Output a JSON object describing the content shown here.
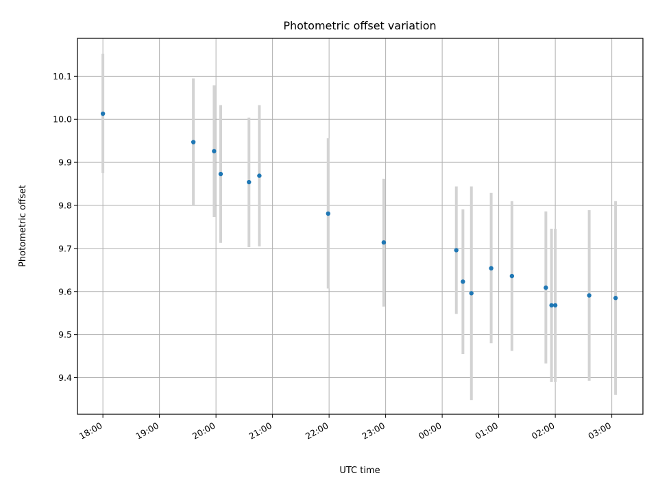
{
  "chart_data": {
    "type": "scatter",
    "title": "Photometric offset variation",
    "xlabel": "UTC time",
    "ylabel": "Photometric offset",
    "x_tick_labels": [
      "18:00",
      "19:00",
      "20:00",
      "21:00",
      "22:00",
      "23:00",
      "00:00",
      "01:00",
      "02:00",
      "03:00"
    ],
    "x_ticks_hours": [
      18,
      19,
      20,
      21,
      22,
      23,
      24,
      25,
      26,
      27
    ],
    "y_ticks": [
      9.4,
      9.5,
      9.6,
      9.7,
      9.8,
      9.9,
      10.0,
      10.1
    ],
    "xlim_hours": [
      17.55,
      27.55
    ],
    "ylim": [
      9.315,
      10.188
    ],
    "grid": true,
    "marker_color": "#1f77b4",
    "errorbar_color": "#d3d3d3",
    "points": [
      {
        "time": "18:00",
        "value": 10.013,
        "low": 9.875,
        "high": 10.152
      },
      {
        "time": "19:36",
        "value": 9.947,
        "low": 9.8,
        "high": 10.095
      },
      {
        "time": "19:58",
        "value": 9.926,
        "low": 9.773,
        "high": 10.079
      },
      {
        "time": "20:05",
        "value": 9.873,
        "low": 9.713,
        "high": 10.033
      },
      {
        "time": "20:35",
        "value": 9.854,
        "low": 9.703,
        "high": 10.004
      },
      {
        "time": "20:46",
        "value": 9.869,
        "low": 9.705,
        "high": 10.033
      },
      {
        "time": "21:59",
        "value": 9.781,
        "low": 9.607,
        "high": 9.956
      },
      {
        "time": "22:58",
        "value": 9.714,
        "low": 9.565,
        "high": 9.862
      },
      {
        "time": "00:15",
        "value": 9.696,
        "low": 9.548,
        "high": 9.844
      },
      {
        "time": "00:22",
        "value": 9.623,
        "low": 9.455,
        "high": 9.791
      },
      {
        "time": "00:31",
        "value": 9.596,
        "low": 9.348,
        "high": 9.844
      },
      {
        "time": "00:52",
        "value": 9.654,
        "low": 9.48,
        "high": 9.829
      },
      {
        "time": "01:14",
        "value": 9.636,
        "low": 9.462,
        "high": 9.81
      },
      {
        "time": "01:50",
        "value": 9.609,
        "low": 9.433,
        "high": 9.786
      },
      {
        "time": "01:56",
        "value": 9.568,
        "low": 9.39,
        "high": 9.746
      },
      {
        "time": "02:00",
        "value": 9.568,
        "low": 9.39,
        "high": 9.746
      },
      {
        "time": "02:36",
        "value": 9.591,
        "low": 9.393,
        "high": 9.789
      },
      {
        "time": "03:04",
        "value": 9.585,
        "low": 9.36,
        "high": 9.81
      }
    ]
  }
}
